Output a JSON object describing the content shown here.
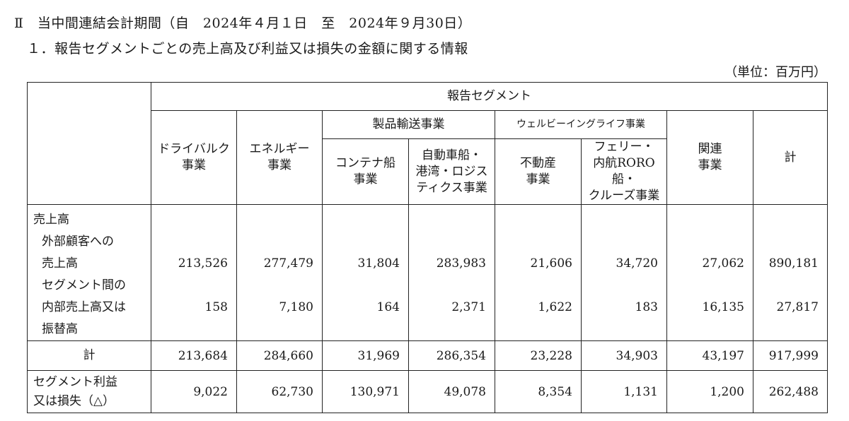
{
  "heading": {
    "period": "Ⅱ　当中間連結会計期間（自　2024年４月１日　至　2024年９月30日）",
    "title": "１．報告セグメントごとの売上高及び利益又は損失の金額に関する情報",
    "unit": "（単位：百万円）"
  },
  "table": {
    "group_header": "報告セグメント",
    "sub_groups": [
      "製品輸送事業",
      "ウェルビーイングライフ事業"
    ],
    "columns": {
      "dry_bulk": [
        "ドライバルク",
        "事業"
      ],
      "energy": [
        "エネルギー",
        "事業"
      ],
      "container": [
        "コンテナ船",
        "事業"
      ],
      "car_carrier": [
        "自動車船・",
        "港湾・ロジス",
        "ティクス事業"
      ],
      "real_estate": [
        "不動産",
        "事業"
      ],
      "ferry": [
        "フェリー・",
        "内航RORO船・",
        "クルーズ事業"
      ],
      "related": [
        "関連",
        "事業"
      ],
      "total": "計"
    },
    "row_labels": {
      "sales": "売上高",
      "external": [
        "外部顧客への",
        "売上高"
      ],
      "internal": [
        "セグメント間の",
        "内部売上高又は",
        "振替高"
      ],
      "total": "計",
      "profit": [
        "セグメント利益",
        "又は損失（△）"
      ]
    },
    "rows": {
      "external": [
        "213,526",
        "277,479",
        "31,804",
        "283,983",
        "21,606",
        "34,720",
        "27,062",
        "890,181"
      ],
      "internal": [
        "158",
        "7,180",
        "164",
        "2,371",
        "1,622",
        "183",
        "16,135",
        "27,817"
      ],
      "total": [
        "213,684",
        "284,660",
        "31,969",
        "286,354",
        "23,228",
        "34,903",
        "43,197",
        "917,999"
      ],
      "profit": [
        "9,022",
        "62,730",
        "130,971",
        "49,078",
        "8,354",
        "1,131",
        "1,200",
        "262,488"
      ]
    }
  }
}
